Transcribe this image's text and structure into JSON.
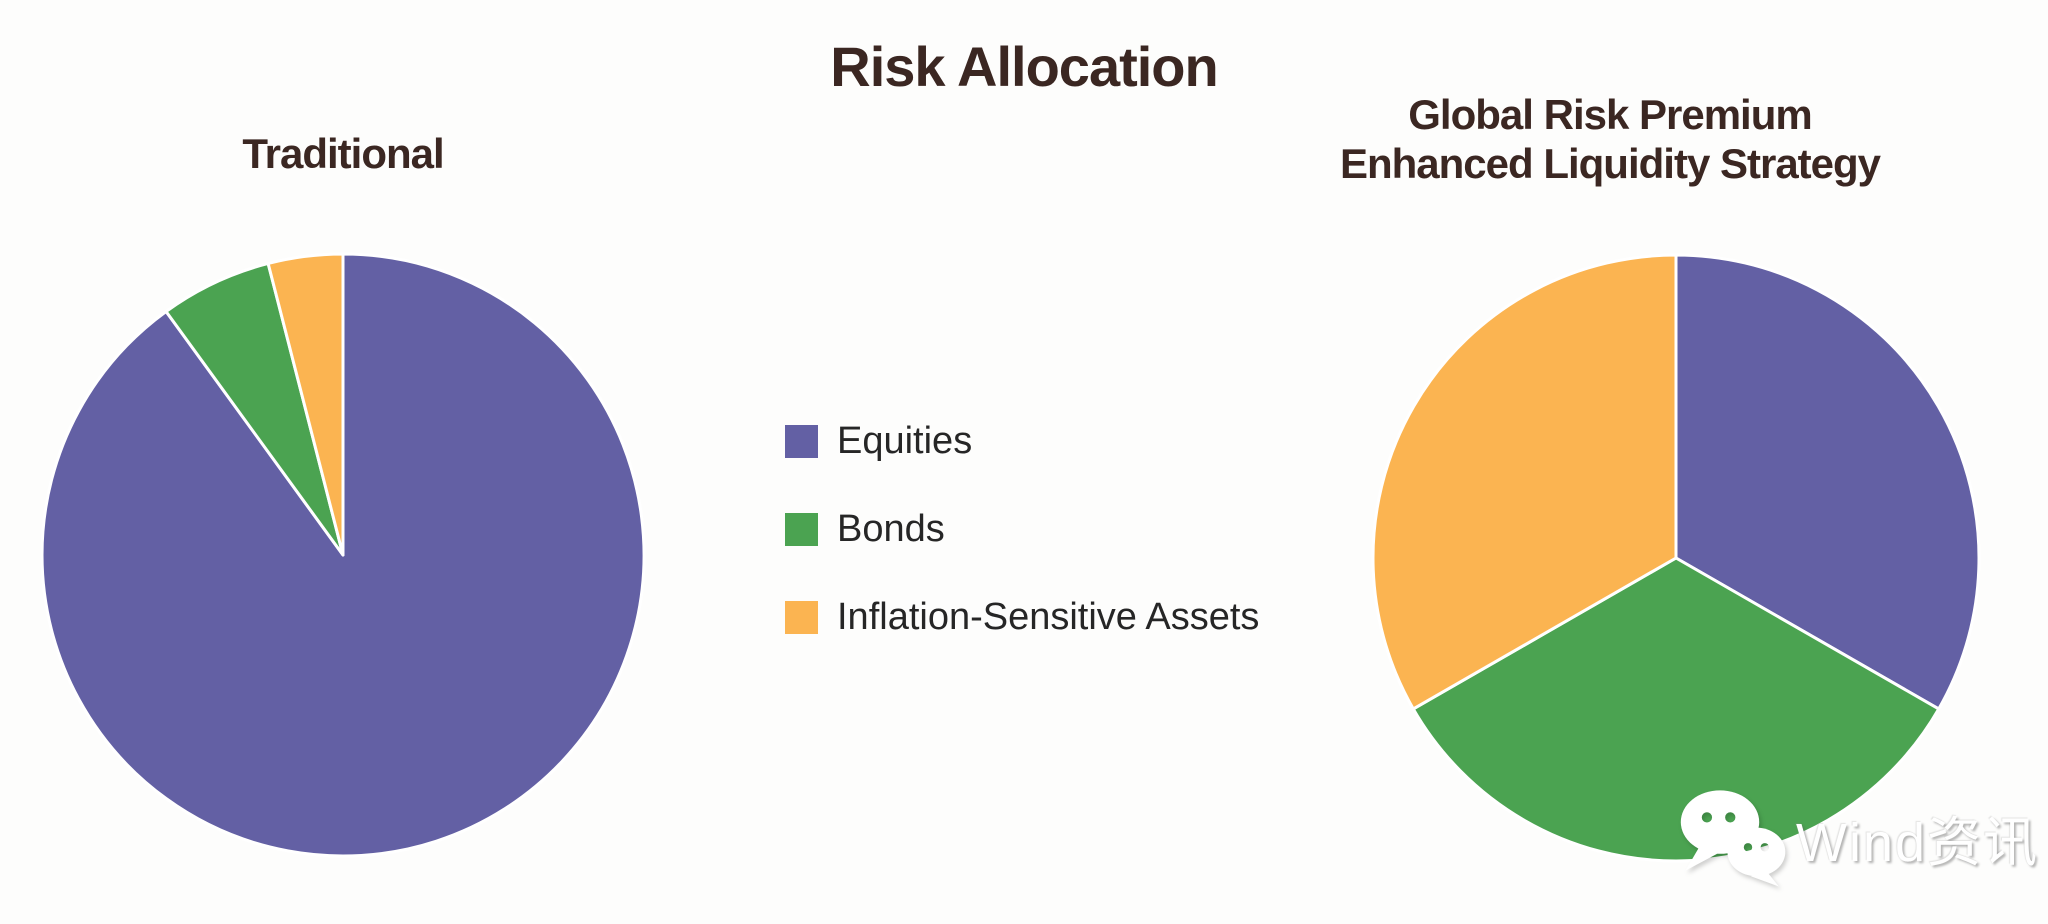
{
  "header": {
    "title": "Risk Allocation",
    "title_color": "#3B2722"
  },
  "charts": {
    "left": {
      "subtitle": "Traditional"
    },
    "right": {
      "subtitle_line1": "Global Risk Premium",
      "subtitle_line2": "Enhanced Liquidity Strategy"
    }
  },
  "legend": {
    "items": [
      {
        "label": "Equities",
        "color": "#6360A4"
      },
      {
        "label": "Bonds",
        "color": "#4BA351"
      },
      {
        "label": "Inflation-Sensitive Assets",
        "color": "#FBB451"
      }
    ]
  },
  "watermark": {
    "icon": "wechat-icon",
    "text": "Wind资讯"
  },
  "colors": {
    "equities": "#6360A4",
    "bonds": "#4BA351",
    "inflation_sensitive_assets": "#FBB451",
    "slice_border": "#FFFFFF",
    "title_text": "#3B2722",
    "legend_text": "#262626",
    "background": "#FDFDFC"
  },
  "chart_data": [
    {
      "type": "pie",
      "title": "Traditional",
      "categories": [
        "Equities",
        "Bonds",
        "Inflation-Sensitive Assets"
      ],
      "values": [
        90,
        6,
        4
      ],
      "colors": [
        "#6360A4",
        "#4BA351",
        "#FBB451"
      ],
      "start_angle_deg": 0,
      "direction": "clockwise",
      "slice_border_color": "#FFFFFF",
      "labels_shown": false,
      "legend_position": "center-between-pies"
    },
    {
      "type": "pie",
      "title": "Global Risk Premium Enhanced Liquidity Strategy",
      "categories": [
        "Equities",
        "Bonds",
        "Inflation-Sensitive Assets"
      ],
      "values": [
        33.3,
        33.4,
        33.3
      ],
      "colors": [
        "#6360A4",
        "#4BA351",
        "#FBB451"
      ],
      "start_angle_deg": 0,
      "direction": "clockwise",
      "slice_border_color": "#FFFFFF",
      "labels_shown": false,
      "legend_position": "center-between-pies"
    }
  ]
}
